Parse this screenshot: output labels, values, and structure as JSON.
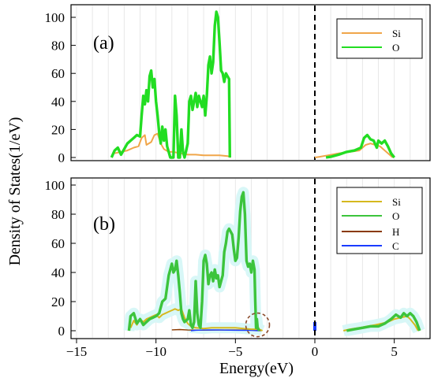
{
  "chart_data": [
    {
      "type": "line",
      "panel_label": "(a)",
      "xlim": [
        -15,
        7.5
      ],
      "ylim": [
        0,
        105
      ],
      "x_ticks": [
        -15,
        -10,
        -5,
        0,
        5
      ],
      "y_ticks": [
        0,
        20,
        40,
        60,
        80,
        100
      ],
      "y_tick_labels": [
        "0",
        "20",
        "40",
        "60",
        "80",
        "100"
      ],
      "grid": true,
      "fermi_level": 0,
      "legend_position": "top-right",
      "series": [
        {
          "name": "Si",
          "color": "#f0a64a",
          "points": [
            [
              -12.6,
              3
            ],
            [
              -12.2,
              4
            ],
            [
              -11.8,
              5
            ],
            [
              -11.4,
              7
            ],
            [
              -11.1,
              8
            ],
            [
              -10.9,
              14
            ],
            [
              -10.7,
              16
            ],
            [
              -10.6,
              9
            ],
            [
              -10.3,
              11
            ],
            [
              -10.1,
              16
            ],
            [
              -9.9,
              17
            ],
            [
              -9.7,
              10
            ],
            [
              -9.5,
              6
            ],
            [
              -9.2,
              4
            ],
            [
              -8.9,
              4
            ],
            [
              -8.5,
              3
            ],
            [
              -8.0,
              2
            ],
            [
              -7.5,
              2
            ],
            [
              -7.0,
              1.5
            ],
            [
              -6.5,
              1.5
            ],
            [
              -6.0,
              1.5
            ],
            [
              -5.5,
              1
            ],
            [
              -5.35,
              0.5
            ],
            [
              -5.3,
              0
            ],
            [
              0,
              0
            ],
            [
              0.3,
              0.5
            ],
            [
              0.8,
              1.5
            ],
            [
              1.5,
              3
            ],
            [
              2.2,
              4
            ],
            [
              2.8,
              5
            ],
            [
              3.2,
              9
            ],
            [
              3.5,
              10
            ],
            [
              3.8,
              9
            ],
            [
              4.1,
              8
            ],
            [
              4.4,
              5
            ],
            [
              4.7,
              2
            ],
            [
              4.9,
              0
            ]
          ]
        },
        {
          "name": "O",
          "color": "#22dd22",
          "points": [
            [
              -12.8,
              0
            ],
            [
              -12.6,
              5
            ],
            [
              -12.4,
              7
            ],
            [
              -12.2,
              2
            ],
            [
              -12.0,
              6
            ],
            [
              -11.8,
              10
            ],
            [
              -11.6,
              12
            ],
            [
              -11.4,
              14
            ],
            [
              -11.2,
              16
            ],
            [
              -11.0,
              15
            ],
            [
              -10.9,
              30
            ],
            [
              -10.8,
              44
            ],
            [
              -10.7,
              38
            ],
            [
              -10.6,
              48
            ],
            [
              -10.5,
              40
            ],
            [
              -10.4,
              58
            ],
            [
              -10.3,
              62
            ],
            [
              -10.2,
              50
            ],
            [
              -10.1,
              56
            ],
            [
              -10.0,
              40
            ],
            [
              -9.9,
              30
            ],
            [
              -9.8,
              18
            ],
            [
              -9.7,
              10
            ],
            [
              -9.6,
              22
            ],
            [
              -9.5,
              12
            ],
            [
              -9.4,
              20
            ],
            [
              -9.3,
              8
            ],
            [
              -9.2,
              4
            ],
            [
              -9.1,
              0
            ],
            [
              -9.0,
              0
            ],
            [
              -8.9,
              0
            ],
            [
              -8.8,
              44
            ],
            [
              -8.7,
              30
            ],
            [
              -8.6,
              0
            ],
            [
              -8.5,
              0
            ],
            [
              -8.4,
              20
            ],
            [
              -8.3,
              4
            ],
            [
              -8.2,
              0
            ],
            [
              -8.0,
              10
            ],
            [
              -7.9,
              40
            ],
            [
              -7.8,
              44
            ],
            [
              -7.7,
              34
            ],
            [
              -7.6,
              40
            ],
            [
              -7.5,
              46
            ],
            [
              -7.4,
              36
            ],
            [
              -7.3,
              44
            ],
            [
              -7.2,
              40
            ],
            [
              -7.1,
              36
            ],
            [
              -7.0,
              44
            ],
            [
              -6.9,
              30
            ],
            [
              -6.8,
              44
            ],
            [
              -6.7,
              66
            ],
            [
              -6.6,
              72
            ],
            [
              -6.5,
              60
            ],
            [
              -6.4,
              68
            ],
            [
              -6.3,
              94
            ],
            [
              -6.2,
              104
            ],
            [
              -6.1,
              100
            ],
            [
              -6.0,
              82
            ],
            [
              -5.9,
              62
            ],
            [
              -5.8,
              60
            ],
            [
              -5.7,
              54
            ],
            [
              -5.6,
              60
            ],
            [
              -5.5,
              58
            ],
            [
              -5.4,
              56
            ],
            [
              -5.35,
              0
            ],
            [
              0.7,
              0
            ],
            [
              1.0,
              0.5
            ],
            [
              1.5,
              2
            ],
            [
              2.0,
              4
            ],
            [
              2.5,
              5
            ],
            [
              2.9,
              7
            ],
            [
              3.1,
              14
            ],
            [
              3.3,
              16
            ],
            [
              3.5,
              13
            ],
            [
              3.7,
              12
            ],
            [
              3.9,
              7
            ],
            [
              4.0,
              12
            ],
            [
              4.2,
              10
            ],
            [
              4.4,
              12
            ],
            [
              4.6,
              8
            ],
            [
              4.8,
              3
            ],
            [
              5.0,
              0
            ]
          ]
        }
      ]
    },
    {
      "type": "line",
      "panel_label": "(b)",
      "xlim": [
        -15,
        7.5
      ],
      "ylim": [
        0,
        102
      ],
      "x_ticks": [
        -15,
        -10,
        -5,
        0,
        5
      ],
      "x_tick_labels": [
        "−15",
        "−10",
        "−5",
        "0",
        "5"
      ],
      "y_ticks": [
        0,
        20,
        40,
        60,
        80,
        100
      ],
      "y_tick_labels": [
        "0",
        "20",
        "40",
        "60",
        "80",
        "100"
      ],
      "xlabel": "Energy(eV)",
      "ylabel": "Density of States(1/eV)",
      "grid": true,
      "fermi_level": 0,
      "legend_position": "top-right",
      "annotation": {
        "shape": "dashed-circle",
        "center": [
          -3.6,
          4
        ],
        "color": "#8a4a2a"
      },
      "series": [
        {
          "name": "Si",
          "color": "#d6b81e",
          "points": [
            [
              -11.6,
              2
            ],
            [
              -11.4,
              7
            ],
            [
              -11.2,
              4
            ],
            [
              -11.0,
              8
            ],
            [
              -10.8,
              6
            ],
            [
              -10.6,
              8
            ],
            [
              -10.4,
              9
            ],
            [
              -10.2,
              10
            ],
            [
              -10.0,
              11
            ],
            [
              -9.8,
              9
            ],
            [
              -9.6,
              11
            ],
            [
              -9.4,
              12
            ],
            [
              -9.2,
              13
            ],
            [
              -9.0,
              14
            ],
            [
              -8.8,
              15
            ],
            [
              -8.6,
              14
            ],
            [
              -8.4,
              15
            ],
            [
              -8.2,
              9
            ],
            [
              -8.0,
              5
            ],
            [
              -7.8,
              3
            ],
            [
              -7.5,
              2
            ],
            [
              -7.0,
              1.5
            ],
            [
              -6.5,
              2
            ],
            [
              -6.0,
              2
            ],
            [
              -5.5,
              2
            ],
            [
              -5.0,
              2
            ],
            [
              -4.5,
              1.5
            ],
            [
              -4.0,
              1
            ],
            [
              -3.7,
              1
            ],
            [
              -3.6,
              3
            ],
            [
              -3.5,
              1
            ],
            [
              -3.3,
              0
            ],
            [
              1.8,
              0
            ],
            [
              2.2,
              1
            ],
            [
              2.8,
              2
            ],
            [
              3.3,
              3
            ],
            [
              3.8,
              4
            ],
            [
              4.2,
              5
            ],
            [
              4.6,
              6
            ],
            [
              5.0,
              8
            ],
            [
              5.4,
              9
            ],
            [
              5.8,
              10
            ],
            [
              6.0,
              8
            ],
            [
              6.3,
              4
            ],
            [
              6.5,
              0
            ]
          ]
        },
        {
          "name": "O",
          "color": "#3cc43c",
          "points": [
            [
              -11.7,
              0
            ],
            [
              -11.6,
              10
            ],
            [
              -11.4,
              12
            ],
            [
              -11.2,
              5
            ],
            [
              -11.0,
              8
            ],
            [
              -10.8,
              4
            ],
            [
              -10.6,
              6
            ],
            [
              -10.4,
              8
            ],
            [
              -10.2,
              9
            ],
            [
              -10.0,
              10
            ],
            [
              -9.8,
              12
            ],
            [
              -9.6,
              20
            ],
            [
              -9.4,
              22
            ],
            [
              -9.2,
              38
            ],
            [
              -9.0,
              46
            ],
            [
              -8.9,
              40
            ],
            [
              -8.8,
              42
            ],
            [
              -8.7,
              48
            ],
            [
              -8.6,
              38
            ],
            [
              -8.5,
              26
            ],
            [
              -8.4,
              12
            ],
            [
              -8.3,
              8
            ],
            [
              -8.2,
              6
            ],
            [
              -8.0,
              8
            ],
            [
              -7.9,
              14
            ],
            [
              -7.8,
              4
            ],
            [
              -7.7,
              2
            ],
            [
              -7.6,
              6
            ],
            [
              -7.5,
              34
            ],
            [
              -7.4,
              12
            ],
            [
              -7.3,
              4
            ],
            [
              -7.2,
              2
            ],
            [
              -7.1,
              20
            ],
            [
              -7.0,
              48
            ],
            [
              -6.9,
              52
            ],
            [
              -6.8,
              46
            ],
            [
              -6.7,
              32
            ],
            [
              -6.6,
              38
            ],
            [
              -6.5,
              40
            ],
            [
              -6.4,
              34
            ],
            [
              -6.3,
              42
            ],
            [
              -6.2,
              36
            ],
            [
              -6.1,
              38
            ],
            [
              -6.0,
              30
            ],
            [
              -5.9,
              34
            ],
            [
              -5.8,
              38
            ],
            [
              -5.7,
              54
            ],
            [
              -5.6,
              60
            ],
            [
              -5.5,
              68
            ],
            [
              -5.4,
              70
            ],
            [
              -5.3,
              68
            ],
            [
              -5.2,
              66
            ],
            [
              -5.1,
              56
            ],
            [
              -5.0,
              48
            ],
            [
              -4.9,
              50
            ],
            [
              -4.8,
              64
            ],
            [
              -4.7,
              82
            ],
            [
              -4.6,
              92
            ],
            [
              -4.5,
              95
            ],
            [
              -4.4,
              80
            ],
            [
              -4.3,
              48
            ],
            [
              -4.2,
              44
            ],
            [
              -4.1,
              46
            ],
            [
              -4.0,
              40
            ],
            [
              -3.9,
              48
            ],
            [
              -3.8,
              42
            ],
            [
              -3.75,
              20
            ],
            [
              -3.7,
              2
            ],
            [
              -3.65,
              8
            ],
            [
              -3.6,
              2
            ],
            [
              -3.5,
              0
            ],
            [
              2.0,
              0
            ],
            [
              2.5,
              1
            ],
            [
              3.0,
              2
            ],
            [
              3.5,
              3
            ],
            [
              4.0,
              3
            ],
            [
              4.4,
              5
            ],
            [
              4.8,
              8
            ],
            [
              5.1,
              11
            ],
            [
              5.4,
              9
            ],
            [
              5.6,
              12
            ],
            [
              5.8,
              10
            ],
            [
              6.0,
              12
            ],
            [
              6.2,
              10
            ],
            [
              6.4,
              6
            ],
            [
              6.6,
              0
            ]
          ]
        },
        {
          "name": "H",
          "color": "#8a3a00",
          "points": [
            [
              -11.6,
              0.4
            ],
            [
              -9.0,
              0.6
            ],
            [
              -8.5,
              0.8
            ],
            [
              -8.0,
              0.5
            ],
            [
              -7.0,
              0.4
            ],
            [
              -6.0,
              0.5
            ],
            [
              -5.0,
              0.5
            ],
            [
              -4.0,
              0.4
            ],
            [
              -3.6,
              0.4
            ],
            [
              -3.4,
              0
            ]
          ]
        },
        {
          "name": "C",
          "color": "#1a3cff",
          "points": [
            [
              -7.8,
              0
            ],
            [
              -7.5,
              0.3
            ],
            [
              -7.0,
              0.5
            ],
            [
              -6.5,
              0.6
            ],
            [
              -6.0,
              0.5
            ],
            [
              -5.0,
              0.3
            ],
            [
              -4.0,
              0.2
            ],
            [
              -3.5,
              0
            ]
          ]
        }
      ]
    }
  ]
}
